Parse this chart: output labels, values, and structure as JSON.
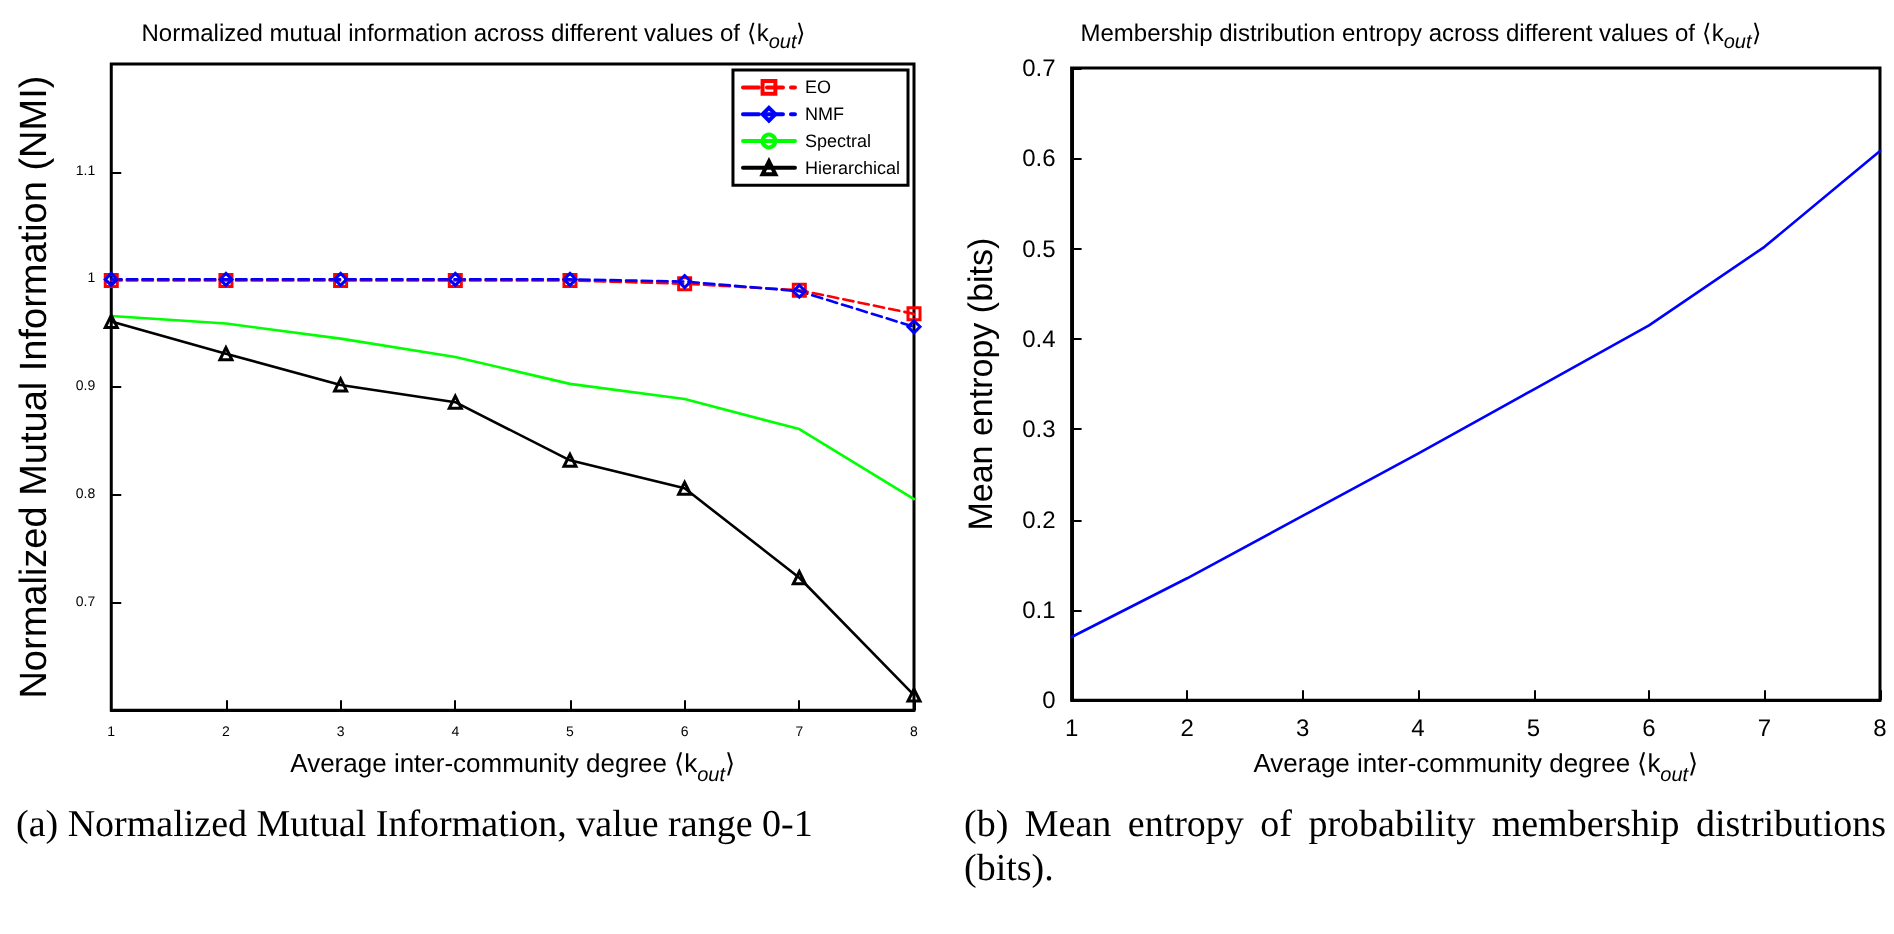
{
  "chart_data": [
    {
      "type": "line",
      "title": "Normalized mutual information across different values of ⟨k$_{out}$⟩",
      "xlabel": "Average inter-community degree ⟨k$_{out}$⟩",
      "ylabel": "Normalized Mutual Information (NMI)",
      "x": [
        1,
        2,
        3,
        4,
        5,
        6,
        7,
        8
      ],
      "xlim": [
        1,
        8
      ],
      "xticks": [
        1,
        2,
        3,
        4,
        5,
        6,
        7,
        8
      ],
      "ylim": [
        0.6,
        1.2
      ],
      "yticks": [
        0.7,
        0.8,
        0.9,
        1,
        1.1
      ],
      "legend": "top right",
      "annotations": [
        "(a) Normalized Mutual Information, value range 0-1"
      ],
      "series": [
        {
          "name": "EO",
          "color": "#ff0000",
          "marker": "square",
          "line_style": "dashed",
          "values": [
            0.999,
            0.999,
            0.999,
            0.999,
            0.999,
            0.996,
            0.99,
            0.968
          ]
        },
        {
          "name": "NMF",
          "color": "#0000ff",
          "marker": "diamond",
          "line_style": "dashed",
          "values": [
            1.0,
            1.0,
            1.0,
            1.0,
            1.0,
            0.998,
            0.989,
            0.956
          ]
        },
        {
          "name": "Spectral",
          "color": "#00ff00",
          "marker": "none",
          "line_style": "solid",
          "values": [
            0.966,
            0.959,
            0.945,
            0.928,
            0.903,
            0.889,
            0.861,
            0.796
          ]
        },
        {
          "name": "Hierarchical",
          "color": "#000000",
          "marker": "triangle",
          "line_style": "solid",
          "values": [
            0.961,
            0.931,
            0.902,
            0.886,
            0.832,
            0.806,
            0.723,
            0.614
          ]
        }
      ]
    },
    {
      "type": "line",
      "title": "Membership distribution entropy across different values of ⟨k$_{out}$⟩",
      "xlabel": "Average inter-community degree ⟨k$_{out}$⟩",
      "ylabel": "Mean entropy (bits)",
      "x": [
        1,
        2,
        3,
        4,
        5,
        6,
        7,
        8
      ],
      "xlim": [
        1,
        8
      ],
      "xticks": [
        1,
        2,
        3,
        4,
        5,
        6,
        7,
        8
      ],
      "ylim": [
        0,
        0.7
      ],
      "yticks": [
        0,
        0.1,
        0.2,
        0.3,
        0.4,
        0.5,
        0.6,
        0.7
      ],
      "annotations": [
        "(b) Mean entropy of probability membership distributions (bits)."
      ],
      "series": [
        {
          "color": "#0000ff",
          "values": [
            0.07,
            0.135,
            0.204,
            0.273,
            0.344,
            0.415,
            0.502,
            0.608
          ]
        }
      ]
    }
  ]
}
